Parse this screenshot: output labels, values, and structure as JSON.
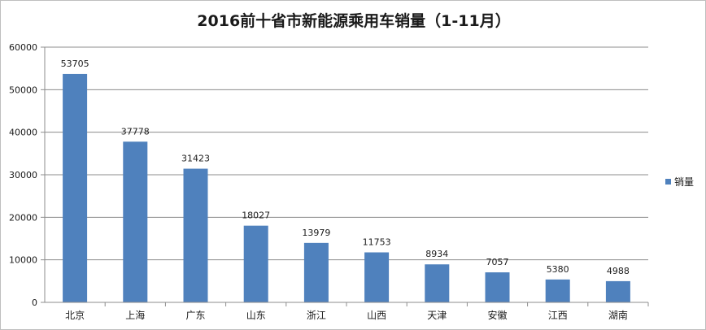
{
  "chart_data": {
    "type": "bar",
    "title": "2016前十省市新能源乘用车销量（1-11月）",
    "categories": [
      "北京",
      "上海",
      "广东",
      "山东",
      "浙江",
      "山西",
      "天津",
      "安徽",
      "江西",
      "湖南"
    ],
    "series": [
      {
        "name": "销量",
        "values": [
          53705,
          37778,
          31423,
          18027,
          13979,
          11753,
          8934,
          7057,
          5380,
          4988
        ],
        "color": "#4f81bd"
      }
    ],
    "ylim": [
      0,
      60000
    ],
    "yticks": [
      0,
      10000,
      20000,
      30000,
      40000,
      50000,
      60000
    ],
    "grid": true,
    "legend": "right"
  }
}
